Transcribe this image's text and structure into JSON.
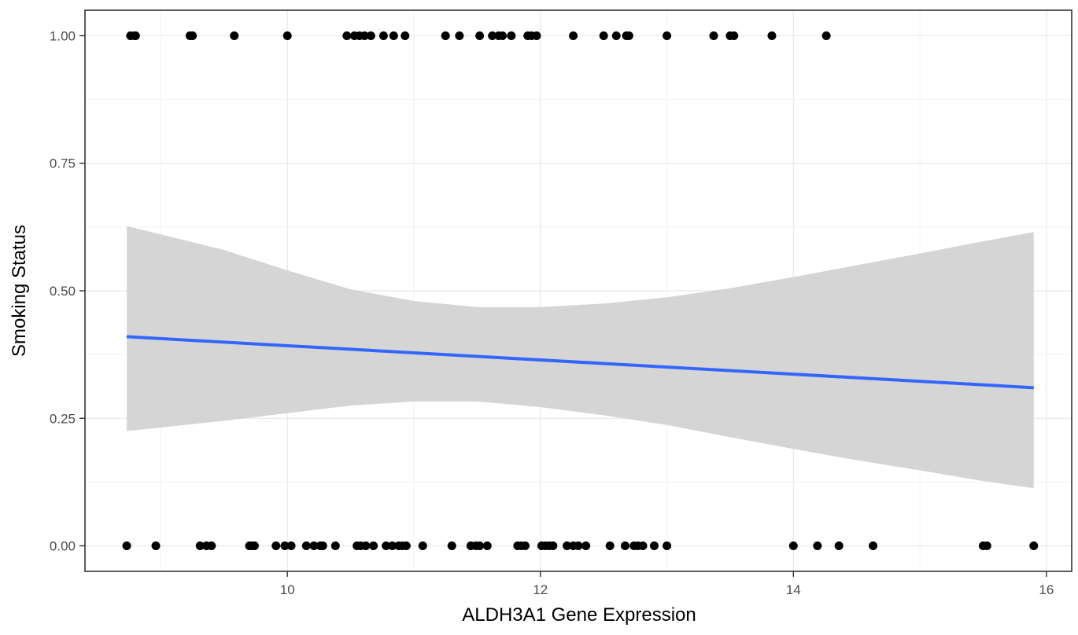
{
  "chart_data": {
    "type": "scatter",
    "title": "",
    "xlabel": "ALDH3A1 Gene Expression",
    "ylabel": "Smoking Status",
    "xlim": [
      8.4,
      16.2
    ],
    "ylim": [
      -0.05,
      1.05
    ],
    "x_ticks": [
      10,
      12,
      14,
      16
    ],
    "x_tick_labels": [
      "10",
      "12",
      "14",
      "16"
    ],
    "y_ticks": [
      0,
      0.25,
      0.5,
      0.75,
      1.0
    ],
    "y_tick_labels": [
      "0.00",
      "0.25",
      "0.50",
      "0.75",
      "1.00"
    ],
    "x_minor_ticks": [
      9,
      11,
      13,
      15
    ],
    "y_minor_ticks": [
      0.125,
      0.375,
      0.625,
      0.875
    ],
    "grid": true,
    "legend": "none",
    "colors": {
      "points": "#000000",
      "fit_line": "#3366ff",
      "ribbon": "#d3d3d3",
      "grid": "#ebebeb",
      "border": "#333333",
      "tick_label": "#4d4d4d"
    },
    "points": {
      "y1": [
        8.76,
        8.79,
        8.8,
        9.23,
        9.25,
        9.58,
        10.0,
        10.47,
        10.53,
        10.57,
        10.61,
        10.66,
        10.76,
        10.84,
        10.93,
        11.25,
        11.36,
        11.52,
        11.62,
        11.67,
        11.7,
        11.77,
        11.9,
        11.93,
        11.97,
        12.26,
        12.5,
        12.6,
        12.68,
        12.7,
        13.0,
        13.37,
        13.5,
        13.53,
        13.83,
        14.26
      ],
      "y0": [
        8.73,
        8.96,
        9.31,
        9.36,
        9.4,
        9.7,
        9.72,
        9.74,
        9.91,
        9.98,
        10.03,
        10.15,
        10.21,
        10.26,
        10.28,
        10.38,
        10.55,
        10.58,
        10.62,
        10.68,
        10.78,
        10.83,
        10.88,
        10.91,
        10.94,
        11.07,
        11.3,
        11.45,
        11.49,
        11.52,
        11.58,
        11.82,
        11.85,
        11.88,
        12.01,
        12.04,
        12.07,
        12.1,
        12.21,
        12.26,
        12.3,
        12.36,
        12.55,
        12.67,
        12.74,
        12.77,
        12.81,
        12.9,
        13.0,
        14.0,
        14.19,
        14.36,
        14.63,
        15.5,
        15.53,
        15.9
      ]
    },
    "fit_line": {
      "x": [
        8.73,
        15.9
      ],
      "y": [
        0.41,
        0.31
      ]
    },
    "confidence_band": {
      "x": [
        8.73,
        9.5,
        10.0,
        10.5,
        11.0,
        11.5,
        12.0,
        12.5,
        13.0,
        13.5,
        14.0,
        14.5,
        15.0,
        15.5,
        15.9
      ],
      "upper": [
        0.627,
        0.58,
        0.54,
        0.503,
        0.48,
        0.468,
        0.468,
        0.475,
        0.487,
        0.505,
        0.527,
        0.55,
        0.573,
        0.597,
        0.615
      ],
      "lower": [
        0.225,
        0.245,
        0.26,
        0.275,
        0.283,
        0.283,
        0.272,
        0.256,
        0.237,
        0.213,
        0.19,
        0.168,
        0.148,
        0.127,
        0.113
      ]
    }
  }
}
